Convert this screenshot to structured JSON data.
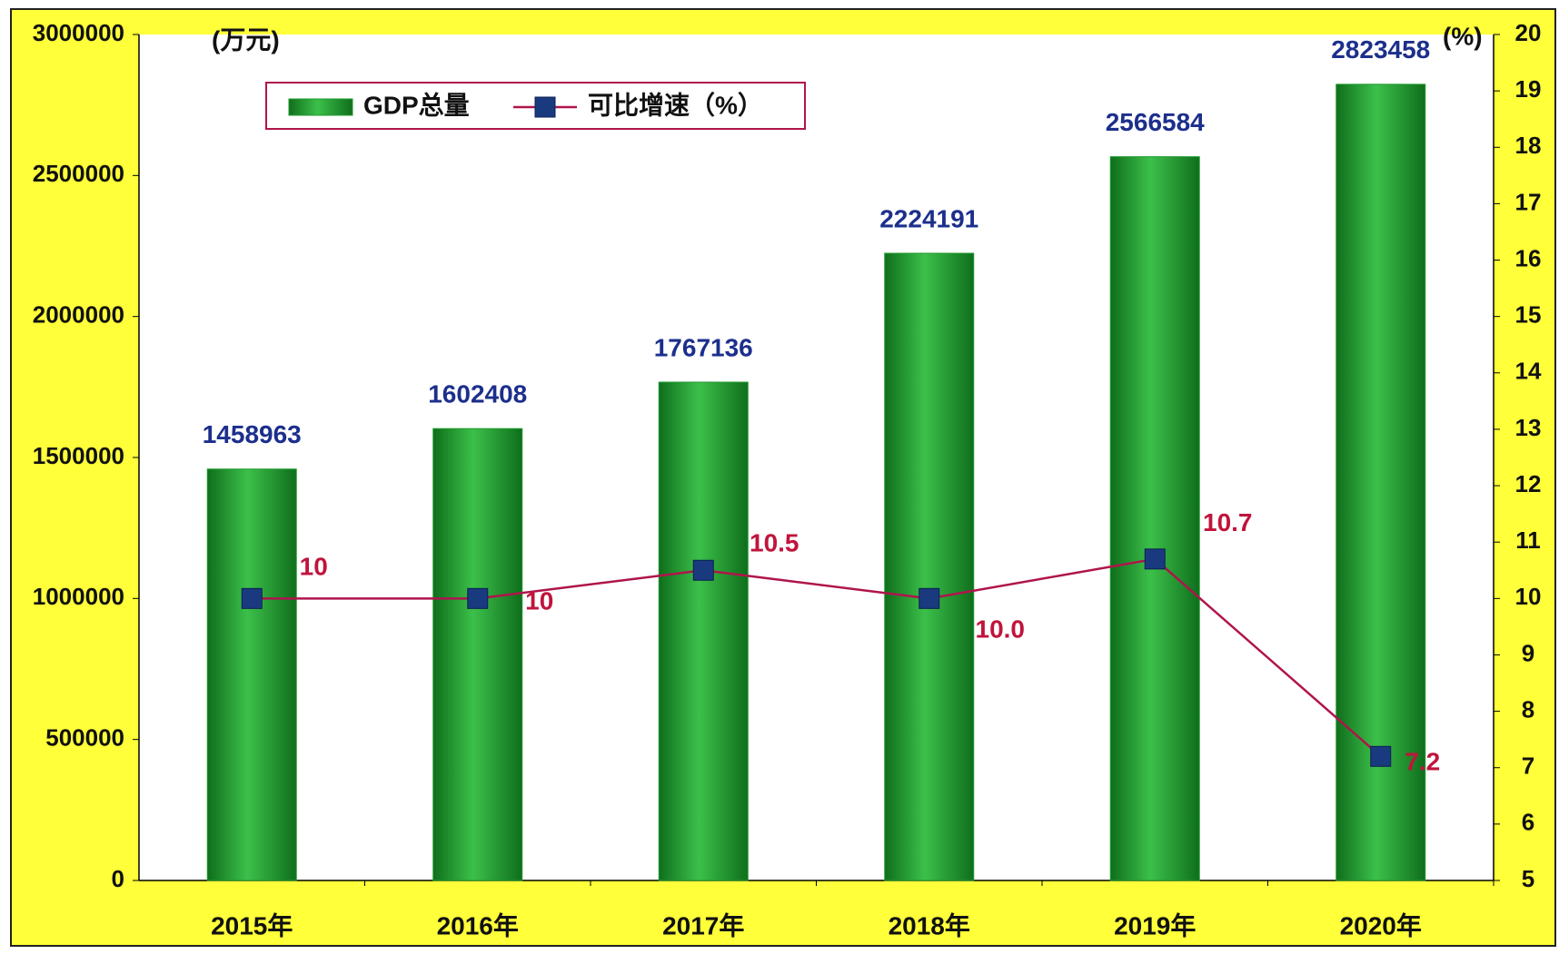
{
  "chart_data": {
    "type": "bar",
    "y_unit_label": "(万元)",
    "y2_unit_label": "(%)",
    "categories": [
      "2015年",
      "2016年",
      "2017年",
      "2018年",
      "2019年",
      "2020年"
    ],
    "series": [
      {
        "name": "GDP总量",
        "type": "bar",
        "color": "#1e9a2e",
        "values": [
          1458963,
          1602408,
          1767136,
          2224191,
          2566584,
          2823458
        ]
      },
      {
        "name": "可比增速（%）",
        "type": "line",
        "axis": "y2",
        "color": "#b0144c",
        "values": [
          10,
          10,
          10.5,
          10,
          10.7,
          7.2
        ],
        "value_labels": [
          "10",
          "10",
          "10.5",
          "10.0",
          "10.7",
          "7.2"
        ]
      }
    ],
    "ylim": [
      0,
      3000000
    ],
    "yticks": [
      0,
      500000,
      1000000,
      1500000,
      2000000,
      2500000,
      3000000
    ],
    "y2lim": [
      5,
      20
    ],
    "y2ticks": [
      5,
      6,
      7,
      8,
      9,
      10,
      11,
      12,
      13,
      14,
      15,
      16,
      17,
      18,
      19,
      20
    ],
    "grid": false,
    "legend": "top-left"
  }
}
